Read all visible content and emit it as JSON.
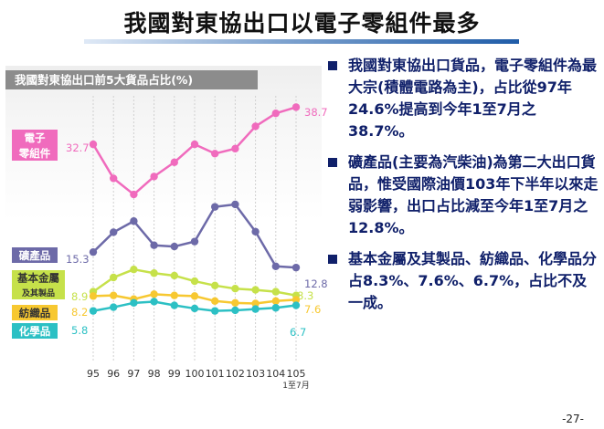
{
  "slide": {
    "title": "我國對東協出口以電子零組件最多",
    "page_number": "-27-"
  },
  "bullets": [
    {
      "text": "我國對東協出口貨品，電子零組件為最大宗(積體電路為主)，占比從97年24.6%提高到今年1至7月之38.7%。"
    },
    {
      "text": "礦產品(主要為汽柴油)為第二大出口貨品，惟受國際油價103年下半年以來走弱影響，出口占比減至今年1至7月之12.8%。"
    },
    {
      "text": "基本金屬及其製品、紡織品、化學品分占8.3%、7.6%、6.7%，占比不及一成。"
    }
  ],
  "chart_data": {
    "type": "line",
    "title": "我國對東協出口前5大貨品占比(%)",
    "x": [
      "95",
      "96",
      "97",
      "98",
      "99",
      "100",
      "101",
      "102",
      "103",
      "104",
      "105"
    ],
    "x_note": "1至7月",
    "ylim": [
      0,
      42
    ],
    "grid": false,
    "legend_placement": "left",
    "series": [
      {
        "name": "電子零組件",
        "label_lines": [
          "電子",
          "零組件"
        ],
        "color": "#f06bbd",
        "label_bg": "#f06bbd",
        "values": [
          32.7,
          27.2,
          24.6,
          27.5,
          29.8,
          32.7,
          31.2,
          32.0,
          35.6,
          37.7,
          38.7
        ],
        "start_label": "32.7",
        "end_label": "38.7"
      },
      {
        "name": "礦產品",
        "label_lines": [
          "礦產品"
        ],
        "color": "#6d6aa8",
        "label_bg": "#6d6aa8",
        "values": [
          15.3,
          18.5,
          20.3,
          16.4,
          16.2,
          17.0,
          22.6,
          23.0,
          18.6,
          13.0,
          12.8
        ],
        "start_label": "15.3",
        "end_label": "12.8"
      },
      {
        "name": "基本金屬及其製品",
        "label_lines": [
          "基本金屬",
          "及其製品"
        ],
        "color": "#c6e14a",
        "label_bg": "#c6e14a",
        "values": [
          8.9,
          11.2,
          12.5,
          11.9,
          11.5,
          10.6,
          9.9,
          9.4,
          9.2,
          8.9,
          8.3
        ],
        "start_label": "8.9",
        "end_label": "8.3"
      },
      {
        "name": "紡織品",
        "label_lines": [
          "紡織品"
        ],
        "color": "#f7c831",
        "label_bg": "#f7c831",
        "values": [
          8.2,
          8.3,
          7.7,
          8.5,
          8.3,
          8.2,
          7.4,
          7.1,
          7.0,
          7.4,
          7.6
        ],
        "start_label": "8.2",
        "end_label": "7.6"
      },
      {
        "name": "化學品",
        "label_lines": [
          "化學品"
        ],
        "color": "#2cc0c4",
        "label_bg": "#2cc0c4",
        "values": [
          5.8,
          6.4,
          7.1,
          7.3,
          6.7,
          6.2,
          5.8,
          5.9,
          6.1,
          6.3,
          6.7
        ],
        "start_label": "5.8",
        "end_label": "6.7"
      }
    ]
  }
}
